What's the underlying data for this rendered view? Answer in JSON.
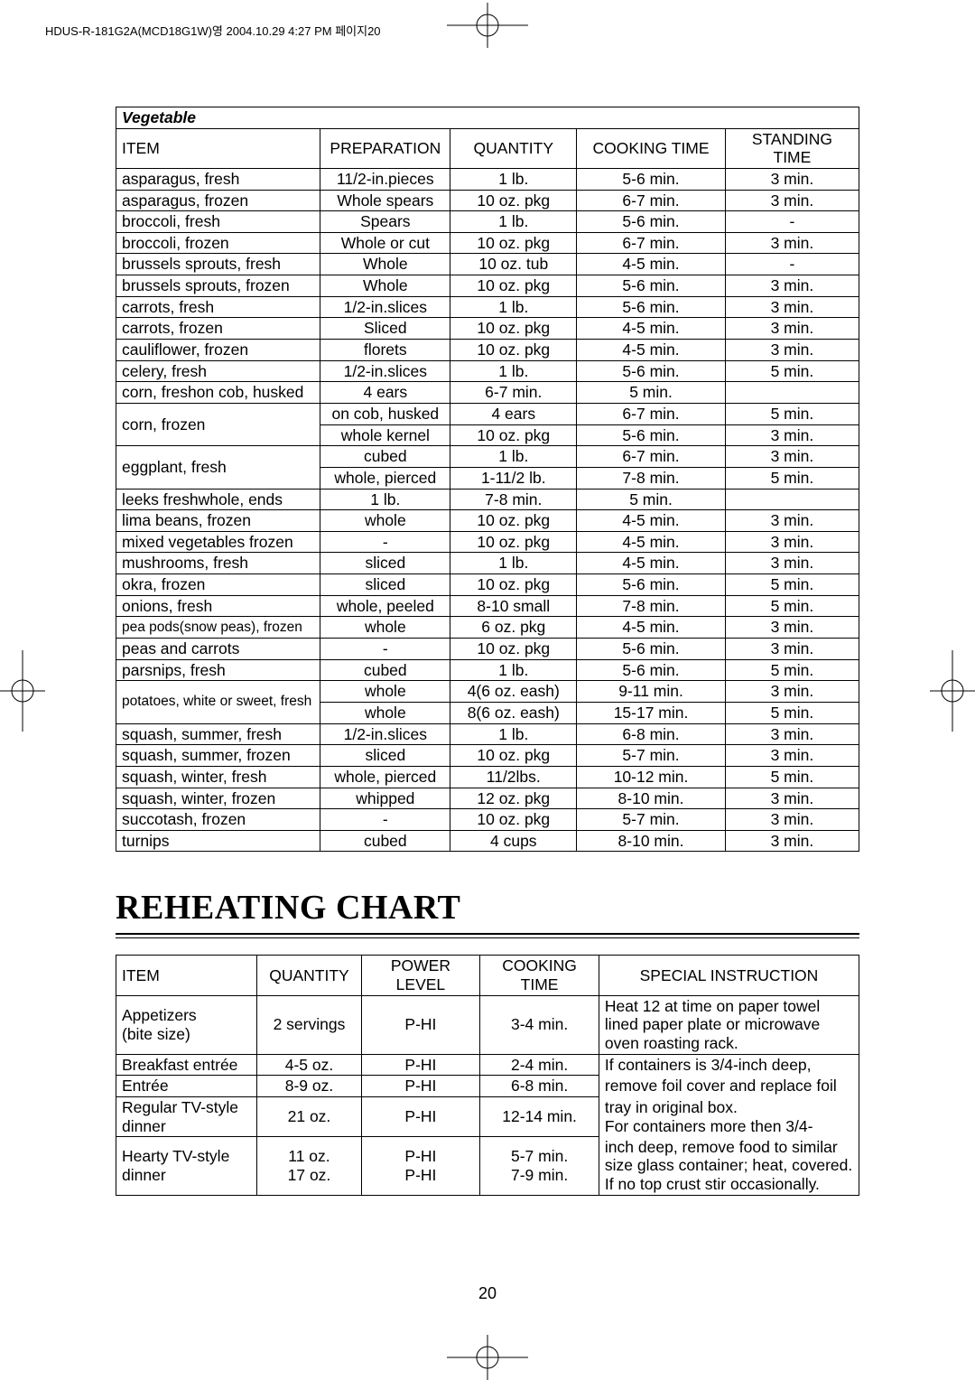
{
  "header_strip": "HDUS-R-181G2A(MCD18G1W)영  2004.10.29  4:27 PM  페이지20",
  "page_number": "20",
  "vegetable": {
    "title": "Vegetable",
    "columns": [
      "ITEM",
      "PREPARATION",
      "QUANTITY",
      "COOKING TIME",
      "STANDING TIME"
    ],
    "rows": [
      {
        "item": "asparagus, fresh",
        "prep": "11/2-in.pieces",
        "qty": "1 lb.",
        "cook": "5-6 min.",
        "stand": "3 min."
      },
      {
        "item": "asparagus, frozen",
        "prep": "Whole spears",
        "qty": "10 oz. pkg",
        "cook": "6-7 min.",
        "stand": "3 min."
      },
      {
        "item": "broccoli, fresh",
        "prep": "Spears",
        "qty": "1 lb.",
        "cook": "5-6 min.",
        "stand": "-"
      },
      {
        "item": "broccoli, frozen",
        "prep": "Whole or cut",
        "qty": "10 oz. pkg",
        "cook": "6-7 min.",
        "stand": "3 min."
      },
      {
        "item": "brussels sprouts, fresh",
        "prep": "Whole",
        "qty": "10 oz. tub",
        "cook": "4-5 min.",
        "stand": "-"
      },
      {
        "item": "brussels sprouts, frozen",
        "prep": "Whole",
        "qty": "10 oz. pkg",
        "cook": "5-6 min.",
        "stand": "3 min."
      },
      {
        "item": "carrots, fresh",
        "prep": "1/2-in.slices",
        "qty": "1 lb.",
        "cook": "5-6 min.",
        "stand": "3 min."
      },
      {
        "item": "carrots, frozen",
        "prep": "Sliced",
        "qty": "10 oz. pkg",
        "cook": "4-5 min.",
        "stand": "3 min."
      },
      {
        "item": "cauliflower, frozen",
        "prep": "florets",
        "qty": "10 oz. pkg",
        "cook": "4-5 min.",
        "stand": "3 min."
      },
      {
        "item": "celery, fresh",
        "prep": "1/2-in.slices",
        "qty": "1 lb.",
        "cook": "5-6 min.",
        "stand": "5 min."
      },
      {
        "item": "corn, freshon cob, husked",
        "prep": "4 ears",
        "qty": "6-7 min.",
        "cook": "5 min.",
        "stand": ""
      },
      {
        "item": "corn, frozen",
        "span": 2,
        "sub": [
          {
            "prep": "on cob, husked",
            "qty": "4 ears",
            "cook": "6-7 min.",
            "stand": "5 min."
          },
          {
            "prep": "whole kernel",
            "qty": "10 oz. pkg",
            "cook": "5-6 min.",
            "stand": "3 min."
          }
        ]
      },
      {
        "item": "eggplant, fresh",
        "span": 2,
        "sub": [
          {
            "prep": "cubed",
            "qty": "1 lb.",
            "cook": "6-7 min.",
            "stand": "3 min."
          },
          {
            "prep": "whole, pierced",
            "qty": "1-11/2 lb.",
            "cook": "7-8 min.",
            "stand": "5 min."
          }
        ]
      },
      {
        "item": "leeks freshwhole, ends",
        "prep": "1 lb.",
        "qty": "7-8 min.",
        "cook": "5 min.",
        "stand": ""
      },
      {
        "item": "lima beans, frozen",
        "prep": "whole",
        "qty": "10 oz. pkg",
        "cook": "4-5 min.",
        "stand": "3 min."
      },
      {
        "item": "mixed vegetables frozen",
        "prep": "-",
        "qty": "10 oz. pkg",
        "cook": "4-5 min.",
        "stand": "3 min."
      },
      {
        "item": "mushrooms, fresh",
        "prep": "sliced",
        "qty": "1 lb.",
        "cook": "4-5 min.",
        "stand": "3 min."
      },
      {
        "item": "okra, frozen",
        "prep": "sliced",
        "qty": "10 oz. pkg",
        "cook": "5-6 min.",
        "stand": "5 min."
      },
      {
        "item": "onions, fresh",
        "prep": "whole, peeled",
        "qty": "8-10 small",
        "cook": "7-8 min.",
        "stand": "5 min."
      },
      {
        "item": "pea pods(snow peas), frozen",
        "prep": "whole",
        "qty": "6 oz. pkg",
        "cook": "4-5 min.",
        "stand": "3 min."
      },
      {
        "item": "peas and carrots",
        "prep": "-",
        "qty": "10 oz. pkg",
        "cook": "5-6 min.",
        "stand": "3 min."
      },
      {
        "item": "parsnips, fresh",
        "prep": "cubed",
        "qty": "1 lb.",
        "cook": "5-6 min.",
        "stand": "5 min."
      },
      {
        "item": "potatoes, white or sweet, fresh",
        "span": 2,
        "sub": [
          {
            "prep": "whole",
            "qty": "4(6 oz. eash)",
            "cook": "9-11 min.",
            "stand": "3 min."
          },
          {
            "prep": "whole",
            "qty": "8(6 oz. eash)",
            "cook": "15-17 min.",
            "stand": "5 min."
          }
        ]
      },
      {
        "item": "squash, summer, fresh",
        "prep": "1/2-in.slices",
        "qty": "1 lb.",
        "cook": "6-8 min.",
        "stand": "3 min."
      },
      {
        "item": "squash, summer, frozen",
        "prep": "sliced",
        "qty": "10 oz. pkg",
        "cook": "5-7 min.",
        "stand": "3 min."
      },
      {
        "item": "squash, winter, fresh",
        "prep": "whole, pierced",
        "qty": "11/2lbs.",
        "cook": "10-12 min.",
        "stand": "5 min."
      },
      {
        "item": "squash, winter, frozen",
        "prep": "whipped",
        "qty": "12 oz. pkg",
        "cook": "8-10 min.",
        "stand": "3 min."
      },
      {
        "item": "succotash, frozen",
        "prep": "-",
        "qty": "10 oz. pkg",
        "cook": "5-7 min.",
        "stand": "3 min."
      },
      {
        "item": "turnips",
        "prep": "cubed",
        "qty": "4 cups",
        "cook": "8-10 min.",
        "stand": "3 min."
      }
    ]
  },
  "reheating": {
    "title": "REHEATING CHART",
    "columns": [
      "ITEM",
      "QUANTITY",
      "POWER LEVEL",
      "COOKING TIME",
      "SPECIAL INSTRUCTION"
    ],
    "rows": [
      {
        "item": "Appetizers\n(bite size)",
        "qty": "2 servings",
        "pl": "P-HI",
        "cook": "3-4 min.",
        "note": "Heat 12 at time on paper towel lined paper plate or microwave oven roasting rack."
      },
      {
        "item": "Breakfast entrée",
        "qty": "4-5 oz.",
        "pl": "P-HI",
        "cook": "2-4 min.",
        "note_part": "If containers is 3/4-inch deep,"
      },
      {
        "item": "Entrée",
        "qty": "8-9 oz.",
        "pl": "P-HI",
        "cook": "6-8 min.",
        "note_part": "remove foil cover and replace foil"
      },
      {
        "item": "Regular TV-style dinner",
        "qty": "21 oz.",
        "pl": "P-HI",
        "cook": "12-14 min.",
        "note_part": "tray in original box.\nFor containers more then 3/4-"
      },
      {
        "item": "Hearty TV-style dinner",
        "qty": "11 oz.\n17 oz.",
        "pl": "P-HI\nP-HI",
        "cook": "5-7 min.\n7-9 min.",
        "note_part": "inch deep, remove food to similar size glass container; heat, covered. If no top crust stir occasionally."
      }
    ]
  }
}
